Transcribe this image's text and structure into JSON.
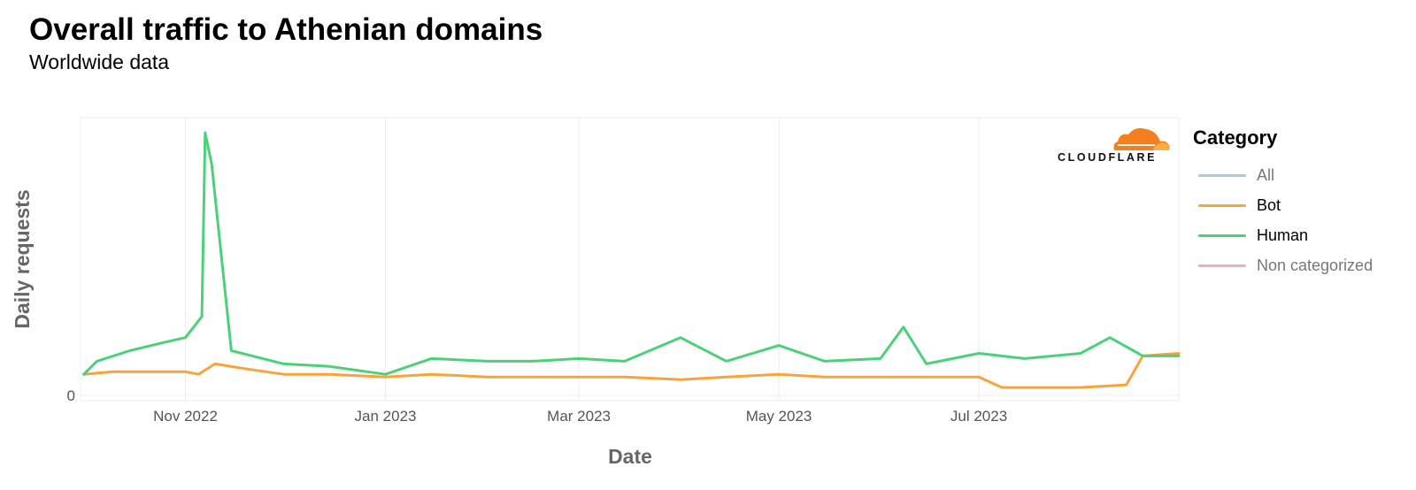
{
  "title": "Overall traffic to Athenian domains",
  "subtitle": "Worldwide data",
  "logo": {
    "text": "CLOUDFLARE",
    "icon": "cloudflare-cloud-icon",
    "colors": [
      "#f38020",
      "#faae40"
    ]
  },
  "legend": {
    "title": "Category",
    "items": [
      {
        "label": "All",
        "color": "#a8c8f0",
        "active": false
      },
      {
        "label": "Bot",
        "color": "#f9a43a",
        "active": true
      },
      {
        "label": "Human",
        "color": "#4dd07a",
        "active": true
      },
      {
        "label": "Non categorized",
        "color": "#f4a8c4",
        "active": false
      }
    ]
  },
  "chart_data": {
    "type": "line",
    "title": "Overall traffic to Athenian domains",
    "subtitle": "Worldwide data",
    "xlabel": "Date",
    "ylabel": "Daily requests",
    "x_ticks": [
      "Nov 2022",
      "Jan 2023",
      "Mar 2023",
      "May 2023",
      "Jul 2023"
    ],
    "x_tick_dates": [
      "2022-11-01",
      "2023-01-01",
      "2023-03-01",
      "2023-05-01",
      "2023-07-01"
    ],
    "y_ticks": [
      0
    ],
    "xlim": [
      "2022-09-30",
      "2023-08-31"
    ],
    "ylim": [
      0,
      100
    ],
    "grid": true,
    "legend_position": "right",
    "series": [
      {
        "name": "Bot",
        "color": "#f9a43a",
        "x": [
          "2022-10-01",
          "2022-10-10",
          "2022-10-20",
          "2022-11-01",
          "2022-11-05",
          "2022-11-10",
          "2022-11-20",
          "2022-12-01",
          "2022-12-15",
          "2023-01-01",
          "2023-01-15",
          "2023-02-01",
          "2023-02-15",
          "2023-03-01",
          "2023-03-15",
          "2023-04-01",
          "2023-04-15",
          "2023-05-01",
          "2023-05-15",
          "2023-06-01",
          "2023-06-15",
          "2023-07-01",
          "2023-07-08",
          "2023-07-15",
          "2023-08-01",
          "2023-08-15",
          "2023-08-20",
          "2023-08-31"
        ],
        "y": [
          8,
          9,
          9,
          9,
          8,
          12,
          10,
          8,
          8,
          7,
          8,
          7,
          7,
          7,
          7,
          6,
          7,
          8,
          7,
          7,
          7,
          7,
          3,
          3,
          3,
          4,
          15,
          16
        ]
      },
      {
        "name": "Human",
        "color": "#4dd07a",
        "x": [
          "2022-10-01",
          "2022-10-05",
          "2022-10-15",
          "2022-10-25",
          "2022-11-01",
          "2022-11-06",
          "2022-11-07",
          "2022-11-09",
          "2022-11-15",
          "2022-12-01",
          "2022-12-15",
          "2023-01-01",
          "2023-01-15",
          "2023-02-01",
          "2023-02-15",
          "2023-03-01",
          "2023-03-15",
          "2023-04-01",
          "2023-04-15",
          "2023-05-01",
          "2023-05-15",
          "2023-06-01",
          "2023-06-08",
          "2023-06-15",
          "2023-07-01",
          "2023-07-15",
          "2023-08-01",
          "2023-08-10",
          "2023-08-20",
          "2023-08-31"
        ],
        "y": [
          8,
          13,
          17,
          20,
          22,
          30,
          100,
          88,
          17,
          12,
          11,
          8,
          14,
          13,
          13,
          14,
          13,
          22,
          13,
          19,
          13,
          14,
          26,
          12,
          16,
          14,
          16,
          22,
          15,
          15
        ]
      }
    ]
  },
  "colors": {
    "grid": "#ececec",
    "axis_text": "#555555",
    "axis_title": "#666666"
  }
}
